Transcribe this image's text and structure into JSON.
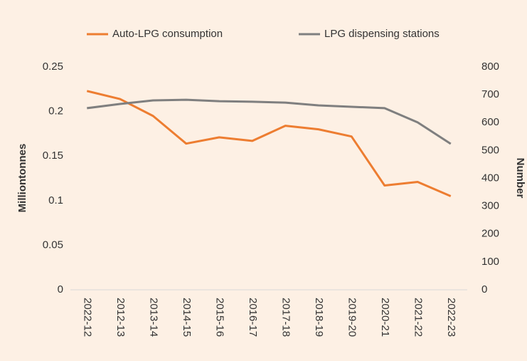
{
  "chart_data": {
    "type": "line",
    "categories": [
      "2022-12",
      "2012-13",
      "2013-14",
      "2014-15",
      "2015-16",
      "2016-17",
      "2017-18",
      "2018-19",
      "2019-20",
      "2020-21",
      "2021-22",
      "2022-23"
    ],
    "series": [
      {
        "name": "Auto-LPG consumption",
        "color": "#ed7d31",
        "values": [
          0.223,
          0.214,
          0.195,
          0.164,
          0.171,
          0.167,
          0.184,
          0.18,
          0.172,
          0.117,
          0.121,
          0.105
        ]
      },
      {
        "name": "LPG dispensing stations",
        "color": "#7f7f7f",
        "axis": "y2",
        "values": [
          652,
          667,
          680,
          682,
          677,
          675,
          672,
          662,
          657,
          652,
          601,
          524
        ]
      }
    ],
    "y_label": "Milliontonnes",
    "y2_label": "Number",
    "ylim": [
      0,
      0.25
    ],
    "yticks": [
      0,
      0.05,
      0.1,
      0.15,
      0.2,
      0.25
    ],
    "y2lim": [
      0,
      800
    ],
    "y2ticks": [
      0,
      100,
      200,
      300,
      400,
      500,
      600,
      700,
      800
    ],
    "legend": "top",
    "grid": false
  }
}
